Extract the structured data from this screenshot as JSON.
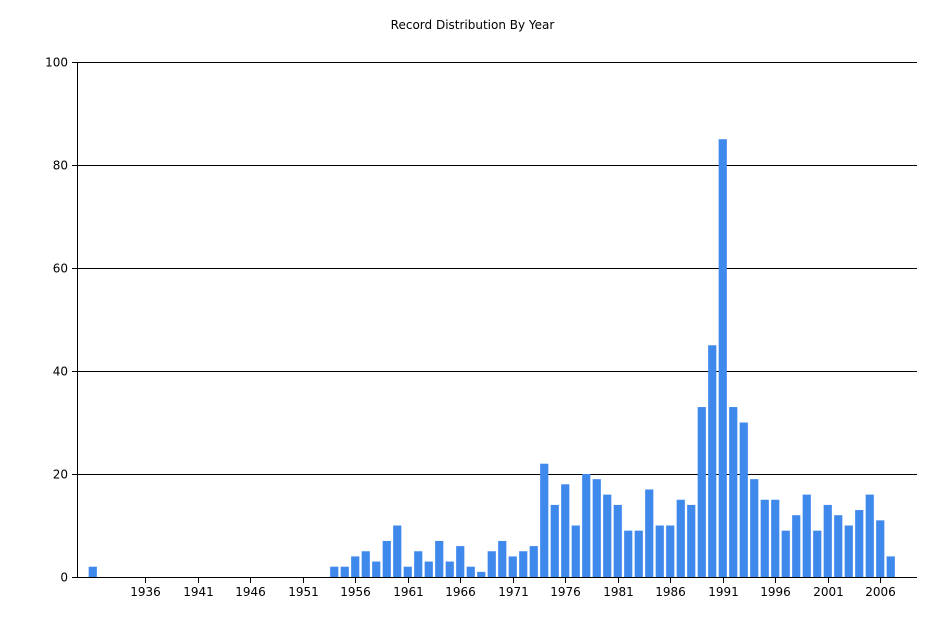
{
  "chart_data": {
    "type": "bar",
    "title": "Record Distribution By Year",
    "xlabel": "",
    "ylabel": "",
    "ylim": [
      0,
      100
    ],
    "y_ticks": [
      0,
      20,
      40,
      60,
      80,
      100
    ],
    "x_range": [
      1929.5,
      2009.5
    ],
    "x_ticks": [
      1936,
      1941,
      1946,
      1951,
      1956,
      1961,
      1966,
      1971,
      1976,
      1981,
      1986,
      1991,
      1996,
      2001,
      2006
    ],
    "grid": "horizontal",
    "bar_color": "#3f88ec",
    "points": [
      {
        "x": 1931,
        "y": 2
      },
      {
        "x": 1954,
        "y": 2
      },
      {
        "x": 1955,
        "y": 2
      },
      {
        "x": 1956,
        "y": 4
      },
      {
        "x": 1957,
        "y": 5
      },
      {
        "x": 1958,
        "y": 3
      },
      {
        "x": 1959,
        "y": 7
      },
      {
        "x": 1960,
        "y": 10
      },
      {
        "x": 1961,
        "y": 2
      },
      {
        "x": 1962,
        "y": 5
      },
      {
        "x": 1963,
        "y": 3
      },
      {
        "x": 1964,
        "y": 7
      },
      {
        "x": 1965,
        "y": 3
      },
      {
        "x": 1966,
        "y": 6
      },
      {
        "x": 1967,
        "y": 2
      },
      {
        "x": 1968,
        "y": 1
      },
      {
        "x": 1969,
        "y": 5
      },
      {
        "x": 1970,
        "y": 7
      },
      {
        "x": 1971,
        "y": 4
      },
      {
        "x": 1972,
        "y": 5
      },
      {
        "x": 1973,
        "y": 6
      },
      {
        "x": 1974,
        "y": 22
      },
      {
        "x": 1975,
        "y": 14
      },
      {
        "x": 1976,
        "y": 18
      },
      {
        "x": 1977,
        "y": 10
      },
      {
        "x": 1978,
        "y": 20
      },
      {
        "x": 1979,
        "y": 19
      },
      {
        "x": 1980,
        "y": 16
      },
      {
        "x": 1981,
        "y": 14
      },
      {
        "x": 1982,
        "y": 9
      },
      {
        "x": 1983,
        "y": 9
      },
      {
        "x": 1984,
        "y": 17
      },
      {
        "x": 1985,
        "y": 10
      },
      {
        "x": 1986,
        "y": 10
      },
      {
        "x": 1987,
        "y": 15
      },
      {
        "x": 1988,
        "y": 14
      },
      {
        "x": 1989,
        "y": 33
      },
      {
        "x": 1990,
        "y": 45
      },
      {
        "x": 1991,
        "y": 85
      },
      {
        "x": 1992,
        "y": 33
      },
      {
        "x": 1993,
        "y": 30
      },
      {
        "x": 1994,
        "y": 19
      },
      {
        "x": 1995,
        "y": 15
      },
      {
        "x": 1996,
        "y": 15
      },
      {
        "x": 1997,
        "y": 9
      },
      {
        "x": 1998,
        "y": 12
      },
      {
        "x": 1999,
        "y": 16
      },
      {
        "x": 2000,
        "y": 9
      },
      {
        "x": 2001,
        "y": 14
      },
      {
        "x": 2002,
        "y": 12
      },
      {
        "x": 2003,
        "y": 10
      },
      {
        "x": 2004,
        "y": 13
      },
      {
        "x": 2005,
        "y": 16
      },
      {
        "x": 2006,
        "y": 11
      },
      {
        "x": 2007,
        "y": 4
      }
    ]
  }
}
